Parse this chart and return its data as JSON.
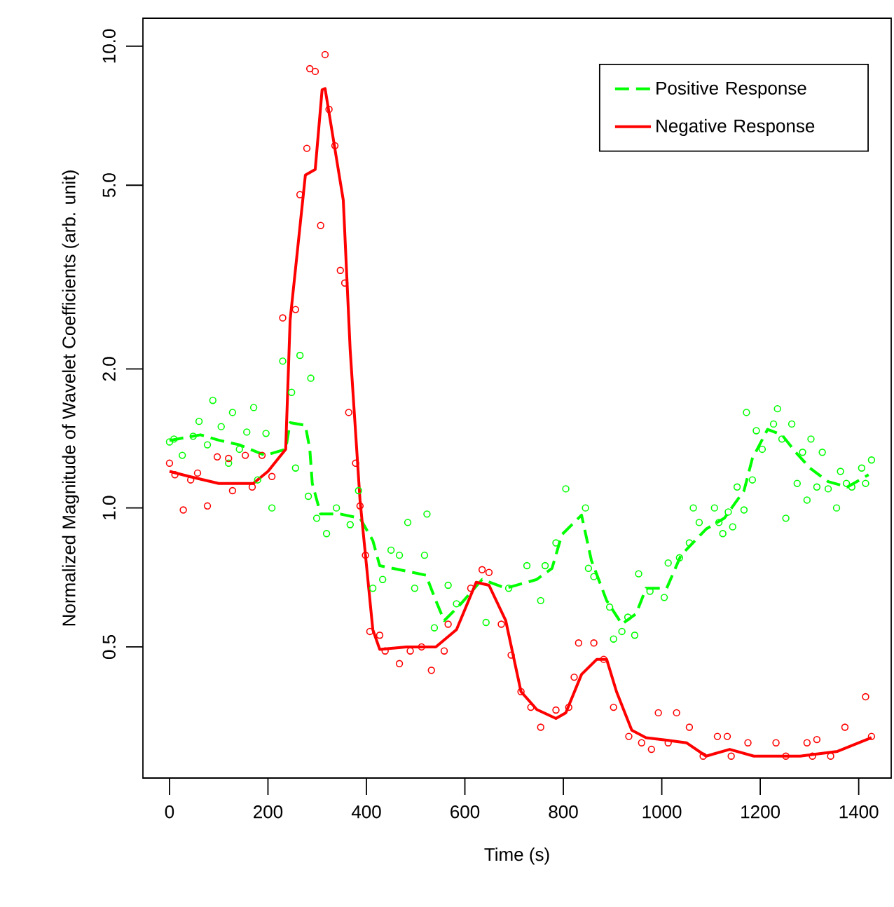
{
  "chart_data": {
    "type": "scatter",
    "xlabel": "Time (s)",
    "ylabel": "Normalized Magnitude of Wavelet Coefficients (arb. unit)",
    "xlim": [
      -54,
      1466
    ],
    "ylim": [
      0.26,
      11.5
    ],
    "log": "y",
    "xticks": [
      0,
      200,
      400,
      600,
      800,
      1000,
      1200,
      1400
    ],
    "yticks": [
      {
        "value": 0.5,
        "label": "0.5"
      },
      {
        "value": 1,
        "label": "1.0"
      },
      {
        "value": 2,
        "label": "2.0"
      },
      {
        "value": 5,
        "label": "5.0"
      },
      {
        "value": 10,
        "label": "10.0"
      }
    ],
    "legend": "top right",
    "grid": false,
    "series": [
      {
        "color": "#00ff00",
        "marker": "circle",
        "x": [
          0,
          9,
          26,
          48,
          60,
          77,
          88,
          105,
          120,
          128,
          142,
          157,
          171,
          179,
          196,
          208,
          230,
          248,
          256,
          265,
          282,
          287,
          299,
          319,
          339,
          367,
          384,
          413,
          433,
          450,
          467,
          484,
          498,
          518,
          523,
          538,
          566,
          583,
          643,
          689,
          726,
          754,
          763,
          785,
          805,
          845,
          851,
          862,
          894,
          902,
          919,
          931,
          945,
          953,
          976,
          1005,
          1013,
          1036,
          1056,
          1064,
          1076,
          1107,
          1116,
          1124,
          1135,
          1144,
          1153,
          1167,
          1172,
          1184,
          1192,
          1204,
          1227,
          1235,
          1244,
          1252,
          1264,
          1275,
          1286,
          1295,
          1303,
          1315,
          1326,
          1338,
          1355,
          1363,
          1375,
          1386,
          1406,
          1414,
          1426
        ],
        "values": [
          1.39,
          1.41,
          1.3,
          1.43,
          1.54,
          1.37,
          1.71,
          1.5,
          1.25,
          1.61,
          1.34,
          1.46,
          1.65,
          1.15,
          1.45,
          1.0,
          2.08,
          1.78,
          1.22,
          2.14,
          1.06,
          1.91,
          0.95,
          0.88,
          1.0,
          0.92,
          1.09,
          0.67,
          0.7,
          0.81,
          0.79,
          0.93,
          0.67,
          0.79,
          0.97,
          0.55,
          0.68,
          0.62,
          0.565,
          0.67,
          0.75,
          0.63,
          0.75,
          0.84,
          1.1,
          1.0,
          0.74,
          0.71,
          0.61,
          0.52,
          0.54,
          0.58,
          0.53,
          0.72,
          0.66,
          0.64,
          0.76,
          0.78,
          0.84,
          1.0,
          0.93,
          1.0,
          0.93,
          0.88,
          0.98,
          0.91,
          1.11,
          0.99,
          1.61,
          1.15,
          1.47,
          1.34,
          1.52,
          1.64,
          1.41,
          0.95,
          1.52,
          1.13,
          1.32,
          1.04,
          1.41,
          1.11,
          1.32,
          1.1,
          1.0,
          1.2,
          1.13,
          1.11,
          1.22,
          1.13,
          1.27
        ]
      },
      {
        "type": "line",
        "name": "Positive Response",
        "color": "#00ff00",
        "line_style": "dashed",
        "x": [
          0,
          63,
          102,
          142,
          194,
          236,
          245,
          276,
          285,
          290,
          307,
          347,
          387,
          413,
          427,
          521,
          541,
          558,
          592,
          635,
          683,
          746,
          777,
          797,
          837,
          857,
          888,
          919,
          948,
          968,
          1010,
          1039,
          1090,
          1127,
          1167,
          1184,
          1215,
          1244,
          1272,
          1301,
          1338,
          1377,
          1420
        ],
        "values": [
          1.4,
          1.44,
          1.4,
          1.37,
          1.3,
          1.34,
          1.53,
          1.51,
          1.34,
          1.13,
          0.97,
          0.97,
          0.95,
          0.85,
          0.75,
          0.715,
          0.63,
          0.57,
          0.62,
          0.7,
          0.67,
          0.7,
          0.74,
          0.875,
          0.965,
          0.77,
          0.63,
          0.56,
          0.59,
          0.67,
          0.67,
          0.79,
          0.9,
          0.95,
          1.09,
          1.28,
          1.48,
          1.44,
          1.32,
          1.22,
          1.14,
          1.11,
          1.18
        ]
      },
      {
        "color": "#ff0000",
        "marker": "circle",
        "x": [
          0,
          11,
          28,
          43,
          57,
          77,
          97,
          120,
          128,
          154,
          168,
          188,
          208,
          230,
          256,
          265,
          279,
          285,
          296,
          307,
          316,
          324,
          336,
          347,
          356,
          364,
          378,
          387,
          398,
          407,
          427,
          438,
          467,
          489,
          512,
          532,
          558,
          566,
          612,
          635,
          649,
          674,
          694,
          714,
          734,
          754,
          785,
          811,
          822,
          831,
          862,
          882,
          902,
          933,
          959,
          979,
          993,
          1013,
          1030,
          1056,
          1084,
          1113,
          1133,
          1141,
          1175,
          1232,
          1252,
          1295,
          1306,
          1315,
          1343,
          1372,
          1414,
          1426
        ],
        "values": [
          1.25,
          1.18,
          0.99,
          1.15,
          1.19,
          1.01,
          1.29,
          1.28,
          1.09,
          1.3,
          1.11,
          1.3,
          1.17,
          2.58,
          2.69,
          4.77,
          6.01,
          8.94,
          8.82,
          4.09,
          9.59,
          7.3,
          6.09,
          3.27,
          3.07,
          1.61,
          1.25,
          1.01,
          0.79,
          0.54,
          0.53,
          0.49,
          0.46,
          0.49,
          0.5,
          0.445,
          0.49,
          0.56,
          0.67,
          0.735,
          0.725,
          0.56,
          0.48,
          0.4,
          0.37,
          0.335,
          0.365,
          0.37,
          0.43,
          0.51,
          0.51,
          0.47,
          0.37,
          0.32,
          0.31,
          0.3,
          0.36,
          0.31,
          0.36,
          0.335,
          0.29,
          0.32,
          0.32,
          0.29,
          0.31,
          0.31,
          0.29,
          0.31,
          0.29,
          0.315,
          0.29,
          0.335,
          0.39,
          0.32
        ]
      },
      {
        "type": "line",
        "name": "Negative Response",
        "color": "#ff0000",
        "line_style": "solid",
        "x": [
          0,
          40,
          100,
          170,
          200,
          236,
          245,
          276,
          296,
          310,
          316,
          353,
          367,
          387,
          413,
          427,
          481,
          541,
          583,
          623,
          649,
          683,
          714,
          746,
          785,
          805,
          837,
          868,
          888,
          908,
          939,
          968,
          1010,
          1050,
          1090,
          1138,
          1187,
          1281,
          1357,
          1426
        ],
        "values": [
          1.2,
          1.17,
          1.13,
          1.13,
          1.2,
          1.34,
          2.55,
          5.26,
          5.41,
          8.05,
          8.1,
          4.64,
          2.2,
          1.04,
          0.545,
          0.494,
          0.5,
          0.5,
          0.545,
          0.69,
          0.68,
          0.57,
          0.4,
          0.366,
          0.35,
          0.36,
          0.436,
          0.47,
          0.47,
          0.4,
          0.33,
          0.318,
          0.314,
          0.31,
          0.29,
          0.3,
          0.29,
          0.29,
          0.297,
          0.318
        ]
      }
    ]
  }
}
